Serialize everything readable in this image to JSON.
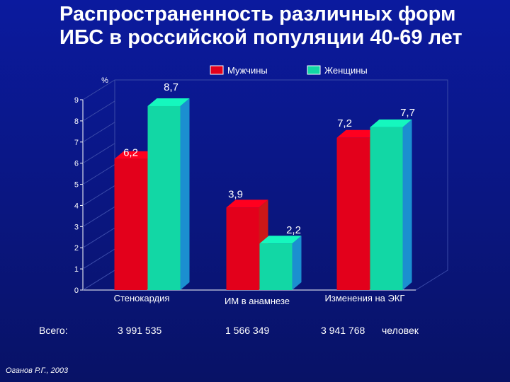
{
  "slide": {
    "title_line1": "Распространенность различных форм",
    "title_line2": "ИБС в российской популяции 40-69 лет",
    "credit": "Оганов Р.Г., 2003"
  },
  "footer": {
    "label": "Всего:",
    "totals": [
      "3 991 535",
      "1 566 349",
      "3 941 768"
    ],
    "unit": "человек"
  },
  "chart_data": {
    "type": "bar",
    "ylabel": "%",
    "ylim": [
      0,
      9
    ],
    "yticks": [
      0,
      1,
      2,
      3,
      4,
      5,
      6,
      7,
      8,
      9
    ],
    "categories": [
      "Стенокардия",
      "ИМ в анамнезе",
      "Изменения на ЭКГ"
    ],
    "series": [
      {
        "name": "Мужчины",
        "values": [
          6.2,
          3.9,
          7.2
        ],
        "value_labels": [
          "6,2",
          "3,9",
          "7,2"
        ],
        "color": "#e3001b"
      },
      {
        "name": "Женщины",
        "values": [
          8.7,
          2.2,
          7.7
        ],
        "value_labels": [
          "8,7",
          "2,2",
          "7,7"
        ],
        "color": "#12d7a5"
      }
    ],
    "legend_position": "top",
    "grid": false
  }
}
